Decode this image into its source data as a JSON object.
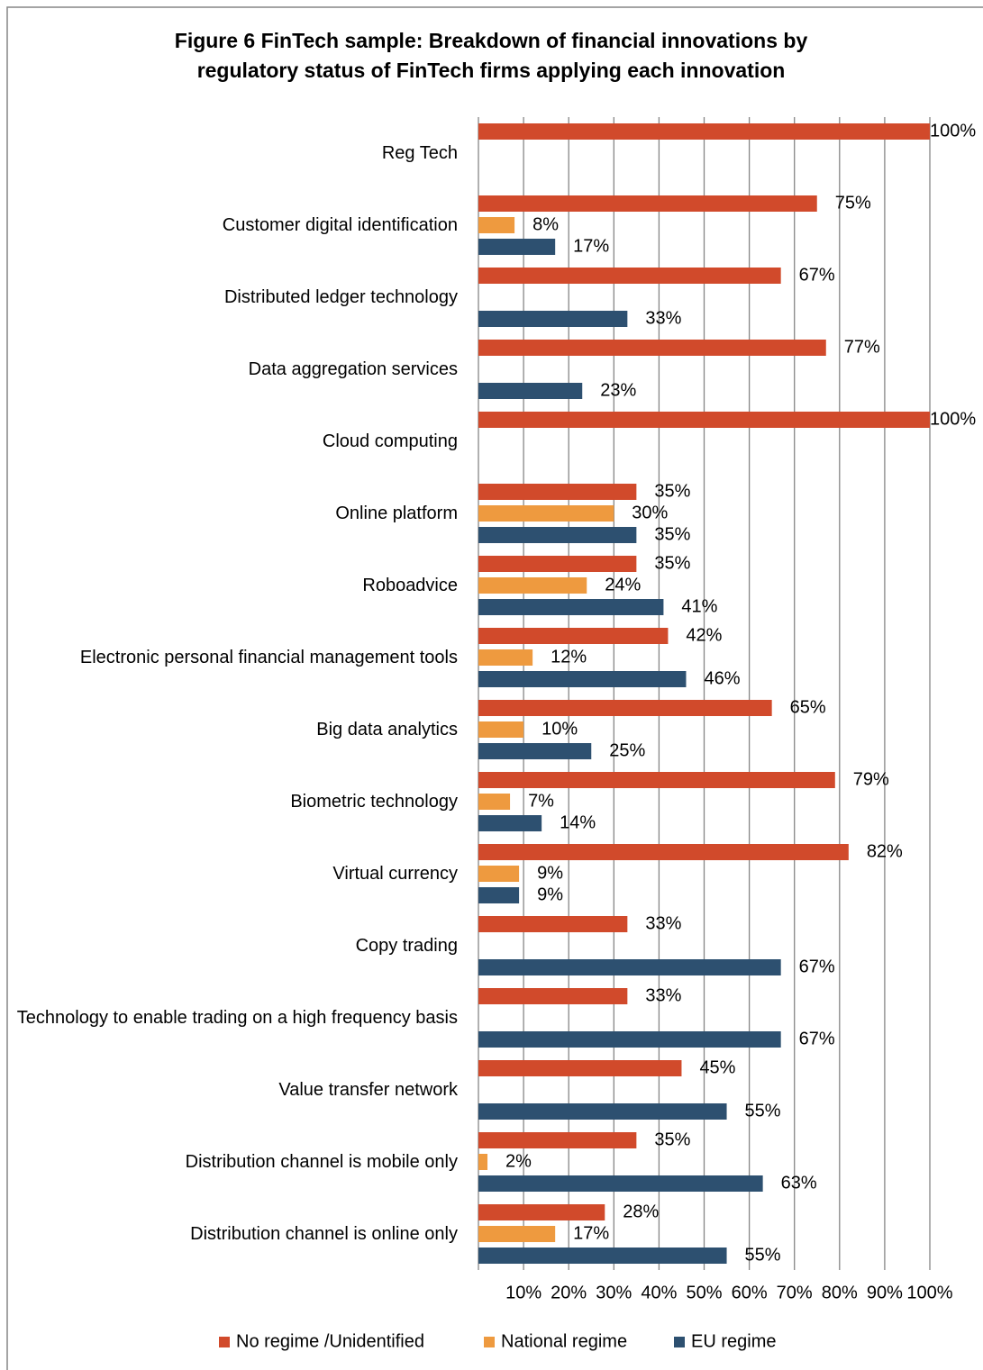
{
  "chart_data": {
    "type": "barh",
    "title": [
      "Figure 6 FinTech sample: Breakdown of financial innovations by",
      "regulatory status of FinTech firms applying each innovation"
    ],
    "categories": [
      "Reg Tech",
      "Customer digital identification",
      "Distributed ledger technology",
      "Data aggregation services",
      "Cloud computing",
      "Online platform",
      "Roboadvice",
      "Electronic personal financial management tools",
      "Big data analytics",
      "Biometric technology",
      "Virtual currency",
      "Copy trading",
      "Technology to enable trading on a high frequency basis",
      "Value transfer network",
      "Distribution channel is mobile only",
      "Distribution channel is online only"
    ],
    "series": [
      {
        "name": "No regime /Unidentified",
        "color": "#d14a2b",
        "values": [
          100,
          75,
          67,
          77,
          100,
          35,
          35,
          42,
          65,
          79,
          82,
          33,
          33,
          45,
          35,
          28
        ],
        "value_labels": [
          "100%",
          "75%",
          "67%",
          "77%",
          "100%",
          "35%",
          "35%",
          "42%",
          "65%",
          "79%",
          "82%",
          "33%",
          "33%",
          "45%",
          "35%",
          "28%"
        ]
      },
      {
        "name": "National regime",
        "color": "#ee9a3f",
        "values": [
          null,
          8,
          null,
          null,
          null,
          30,
          24,
          12,
          10,
          7,
          9,
          null,
          null,
          null,
          2,
          17
        ],
        "value_labels": [
          null,
          "8%",
          null,
          null,
          null,
          "30%",
          "24%",
          "12%",
          "10%",
          "7%",
          "9%",
          null,
          null,
          null,
          "2%",
          "17%"
        ]
      },
      {
        "name": "EU regime",
        "color": "#2d5070",
        "values": [
          null,
          17,
          33,
          23,
          null,
          35,
          41,
          46,
          25,
          14,
          9,
          67,
          67,
          55,
          63,
          55
        ],
        "value_labels": [
          null,
          "17%",
          "33%",
          "23%",
          null,
          "35%",
          "41%",
          "46%",
          "25%",
          "14%",
          "9%",
          "67%",
          "67%",
          "55%",
          "63%",
          "55%"
        ]
      }
    ],
    "xlim": [
      0,
      100
    ],
    "xticks": [
      {
        "value": 10,
        "label": "10%"
      },
      {
        "value": 20,
        "label": "20%"
      },
      {
        "value": 30,
        "label": "30%"
      },
      {
        "value": 40,
        "label": "40%"
      },
      {
        "value": 50,
        "label": "50%"
      },
      {
        "value": 60,
        "label": "60%"
      },
      {
        "value": 70,
        "label": "70%"
      },
      {
        "value": 80,
        "label": "80%"
      },
      {
        "value": 90,
        "label": "90%"
      },
      {
        "value": 100,
        "label": "100%"
      }
    ],
    "grid": true,
    "legend": "bottom"
  }
}
